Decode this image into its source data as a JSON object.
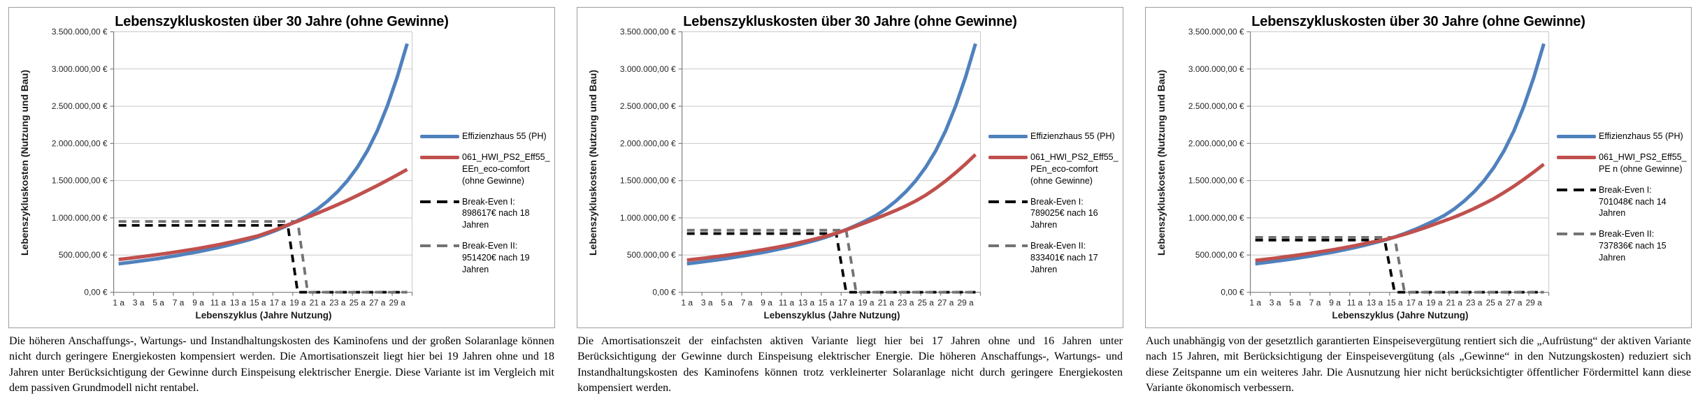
{
  "page": {
    "background": "#ffffff"
  },
  "colors": {
    "series_blue": "#4F81BD",
    "series_red": "#C0504D",
    "breakeven1_black": "#000000",
    "breakeven2_gray": "#737373",
    "gridline": "#C9C9C9",
    "axis": "#7F7F7F",
    "panel_border": "#9D9D9D"
  },
  "chart_data": [
    {
      "type": "line",
      "title": "Lebenszykluskosten über 30 Jahre (ohne Gewinne)",
      "ylabel": "Lebenszykluskosten (Nutzung und Bau)",
      "xlabel": "Lebenszyklus (Jahre Nutzung)",
      "ylim": [
        0,
        3500000
      ],
      "y_tick_step": 500000,
      "y_tick_labels": [
        "3.500.000,00 €",
        "3.000.000,00 €",
        "2.500.000,00 €",
        "2.000.000,00 €",
        "1.500.000,00 €",
        "1.000.000,00 €",
        "500.000,00 €",
        "0,00 €"
      ],
      "x_years": 30,
      "x_tick_labels": [
        "1 a",
        "3 a",
        "5 a",
        "7 a",
        "9 a",
        "11 a",
        "13 a",
        "15 a",
        "17 a",
        "19 a",
        "21 a",
        "23 a",
        "25 a",
        "27 a",
        "29 a"
      ],
      "grid": true,
      "legend_position": "right",
      "series": [
        {
          "name": "Effizienzhaus 55 (PH)",
          "color": "#4F81BD",
          "style": "solid",
          "values": [
            383000,
            399000,
            416000,
            434000,
            453000,
            474000,
            496000,
            520000,
            545000,
            572000,
            601000,
            632000,
            665000,
            701000,
            742000,
            789000,
            841000,
            899000,
            962000,
            1032000,
            1120000,
            1225000,
            1350000,
            1500000,
            1680000,
            1900000,
            2170000,
            2500000,
            2890000,
            3340000
          ]
        },
        {
          "name": "061_HWI_PS2_Eff55_EEn_eco-comfort (ohne Gewinne)",
          "color": "#C0504D",
          "style": "solid",
          "values": [
            440000,
            456000,
            472000,
            489000,
            507000,
            526000,
            546000,
            567000,
            589000,
            613000,
            638000,
            665000,
            694000,
            725000,
            758000,
            804000,
            852000,
            905000,
            955000,
            1008000,
            1062000,
            1118000,
            1176000,
            1236000,
            1300000,
            1366000,
            1434000,
            1504000,
            1576000,
            1650000
          ]
        },
        {
          "name": "Break-Even I",
          "color": "#000000",
          "style": "dashed",
          "value": 898617,
          "years_until_drop": 18
        },
        {
          "name": "Break-Even II",
          "color": "#737373",
          "style": "dashed",
          "value": 951420,
          "years_until_drop": 19
        }
      ],
      "legend": [
        {
          "label": "Effizienzhaus 55 (PH)",
          "series": 0
        },
        {
          "label": "061_HWI_PS2_Eff55_EEn_eco-comfort (ohne Gewinne)",
          "series": 1
        },
        {
          "label": "Break-Even I: 898617€ nach 18 Jahren",
          "series": 2
        },
        {
          "label": "Break-Even II: 951420€ nach 19 Jahren",
          "series": 3
        }
      ],
      "caption": "Die höheren Anschaffungs-, Wartungs- und Instandhaltungskosten des Kaminofens und der großen Solaranlage können nicht durch geringere Energiekosten kompensiert werden. Die Amortisationszeit liegt hier bei 19 Jahren ohne und 18 Jahren unter Berücksichtigung der Gewinne durch Einspeisung elektrischer Energie. Diese Variante ist im Vergleich mit dem passiven Grundmodell nicht rentabel."
    },
    {
      "type": "line",
      "title": "Lebenszykluskosten über 30 Jahre (ohne Gewinne)",
      "ylabel": "Lebenszykluskosten (Nutzung und Bau)",
      "xlabel": "Lebenszyklus (Jahre Nutzung)",
      "ylim": [
        0,
        3500000
      ],
      "y_tick_step": 500000,
      "y_tick_labels": [
        "3.500.000,00 €",
        "3.000.000,00 €",
        "2.500.000,00 €",
        "2.000.000,00 €",
        "1.500.000,00 €",
        "1.000.000,00 €",
        "500.000,00 €",
        "0,00 €"
      ],
      "x_years": 30,
      "x_tick_labels": [
        "1 a",
        "3 a",
        "5 a",
        "7 a",
        "9 a",
        "11 a",
        "13 a",
        "15 a",
        "17 a",
        "19 a",
        "21 a",
        "23 a",
        "25 a",
        "27 a",
        "29 a"
      ],
      "grid": true,
      "legend_position": "right",
      "series": [
        {
          "name": "Effizienzhaus 55 (PH)",
          "color": "#4F81BD",
          "style": "solid",
          "values": [
            383000,
            399000,
            416000,
            434000,
            453000,
            474000,
            496000,
            520000,
            545000,
            572000,
            601000,
            632000,
            665000,
            701000,
            742000,
            789000,
            841000,
            899000,
            962000,
            1032000,
            1120000,
            1225000,
            1350000,
            1500000,
            1680000,
            1900000,
            2170000,
            2500000,
            2890000,
            3340000
          ]
        },
        {
          "name": "061_HWI_PS2_Eff55_PEn_eco-comfort (ohne Gewinne)",
          "color": "#C0504D",
          "style": "solid",
          "values": [
            432000,
            447000,
            463000,
            480000,
            498000,
            517000,
            537000,
            558000,
            580000,
            604000,
            630000,
            658000,
            688000,
            720000,
            755000,
            793000,
            838000,
            888000,
            938000,
            990000,
            1044000,
            1100000,
            1160000,
            1228000,
            1305000,
            1395000,
            1495000,
            1605000,
            1723000,
            1850000
          ]
        },
        {
          "name": "Break-Even I",
          "color": "#000000",
          "style": "dashed",
          "value": 789025,
          "years_until_drop": 16
        },
        {
          "name": "Break-Even II",
          "color": "#737373",
          "style": "dashed",
          "value": 833401,
          "years_until_drop": 17
        }
      ],
      "legend": [
        {
          "label": "Effizienzhaus 55 (PH)",
          "series": 0
        },
        {
          "label": "061_HWI_PS2_Eff55_PEn_eco-comfort (ohne Gewinne)",
          "series": 1
        },
        {
          "label": "Break-Even I: 789025€ nach 16 Jahren",
          "series": 2
        },
        {
          "label": "Break-Even II: 833401€ nach 17 Jahren",
          "series": 3
        }
      ],
      "caption": "Die Amortisationszeit der einfachsten aktiven Variante liegt hier bei 17 Jahren ohne und 16 Jahren unter Berücksichtigung der Gewinne durch Einspeisung elektrischer Energie. Die höheren Anschaffungs-, Wartungs- und Instandhaltungskosten des Kaminofens können trotz verkleinerter Solaranlage nicht durch geringere Energiekosten kompensiert werden."
    },
    {
      "type": "line",
      "title": "Lebenszykluskosten über 30 Jahre (ohne Gewinne)",
      "ylabel": "Lebenszykluskosten (Nutzung und Bau)",
      "xlabel": "Lebenszyklus (Jahre Nutzung)",
      "ylim": [
        0,
        3500000
      ],
      "y_tick_step": 500000,
      "y_tick_labels": [
        "3.500.000,00 €",
        "3.000.000,00 €",
        "2.500.000,00 €",
        "2.000.000,00 €",
        "1.500.000,00 €",
        "1.000.000,00 €",
        "500.000,00 €",
        "0,00 €"
      ],
      "x_years": 30,
      "x_tick_labels": [
        "1 a",
        "3 a",
        "5 a",
        "7 a",
        "9 a",
        "11 a",
        "13 a",
        "15 a",
        "17 a",
        "19 a",
        "21 a",
        "23 a",
        "25 a",
        "27 a",
        "29 a"
      ],
      "grid": true,
      "legend_position": "right",
      "series": [
        {
          "name": "Effizienzhaus 55 (PH)",
          "color": "#4F81BD",
          "style": "solid",
          "values": [
            383000,
            399000,
            416000,
            434000,
            453000,
            474000,
            496000,
            520000,
            545000,
            572000,
            601000,
            632000,
            665000,
            701000,
            742000,
            789000,
            841000,
            899000,
            962000,
            1032000,
            1120000,
            1225000,
            1350000,
            1500000,
            1680000,
            1900000,
            2170000,
            2500000,
            2890000,
            3340000
          ]
        },
        {
          "name": "061_HWI_PS2_Eff55_PEn (ohne Gewinne)",
          "color": "#C0504D",
          "style": "solid",
          "values": [
            428000,
            443000,
            459000,
            476000,
            494000,
            513000,
            533000,
            554000,
            576000,
            600000,
            626000,
            654000,
            680000,
            706000,
            740000,
            778000,
            820000,
            865000,
            912000,
            960000,
            1010000,
            1065000,
            1125000,
            1190000,
            1260000,
            1340000,
            1425000,
            1518000,
            1616000,
            1720000
          ]
        },
        {
          "name": "Break-Even I",
          "color": "#000000",
          "style": "dashed",
          "value": 701048,
          "years_until_drop": 14
        },
        {
          "name": "Break-Even II",
          "color": "#737373",
          "style": "dashed",
          "value": 737836,
          "years_until_drop": 15
        }
      ],
      "legend": [
        {
          "label": "Effizienzhaus 55 (PH)",
          "series": 0
        },
        {
          "label": "061_HWI_PS2_Eff55_PE n (ohne Gewinne)",
          "series": 1
        },
        {
          "label": "Break-Even I: 701048€ nach 14 Jahren",
          "series": 2
        },
        {
          "label": "Break-Even II: 737836€ nach 15 Jahren",
          "series": 3
        }
      ],
      "caption": "Auch unabhängig von der gesetztlich garantierten Einspeisevergütung rentiert sich die „Aufrüstung“ der aktiven Variante nach 15 Jahren, mit Berücksichtigung der Einspeisevergütung (als „Gewinne“ in den Nutzungskosten) reduziert sich diese Zeitspanne um ein weiteres Jahr. Die Ausnutzung hier nicht berücksichtigter öffentlicher Fördermittel kann diese Variante ökonomisch verbessern."
    }
  ]
}
